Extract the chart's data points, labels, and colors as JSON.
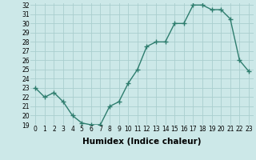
{
  "xlabel": "Humidex (Indice chaleur)",
  "x": [
    0,
    1,
    2,
    3,
    4,
    5,
    6,
    7,
    8,
    9,
    10,
    11,
    12,
    13,
    14,
    15,
    16,
    17,
    18,
    19,
    20,
    21,
    22,
    23
  ],
  "y": [
    23,
    22,
    22.5,
    21.5,
    20,
    19.2,
    19,
    19,
    21,
    21.5,
    23.5,
    25,
    27.5,
    28,
    28,
    30,
    30,
    32,
    32,
    31.5,
    31.5,
    30.5,
    26,
    24.8
  ],
  "ylim": [
    19,
    32
  ],
  "yticks": [
    19,
    20,
    21,
    22,
    23,
    24,
    25,
    26,
    27,
    28,
    29,
    30,
    31,
    32
  ],
  "xticks": [
    0,
    1,
    2,
    3,
    4,
    5,
    6,
    7,
    8,
    9,
    10,
    11,
    12,
    13,
    14,
    15,
    16,
    17,
    18,
    19,
    20,
    21,
    22,
    23
  ],
  "line_color": "#2e7d6e",
  "marker_color": "#2e7d6e",
  "bg_color": "#cce8e8",
  "grid_color": "#aacece",
  "tick_label_fontsize": 5.5,
  "xlabel_fontsize": 7.5,
  "marker": "+",
  "marker_size": 4,
  "linewidth": 1.0
}
